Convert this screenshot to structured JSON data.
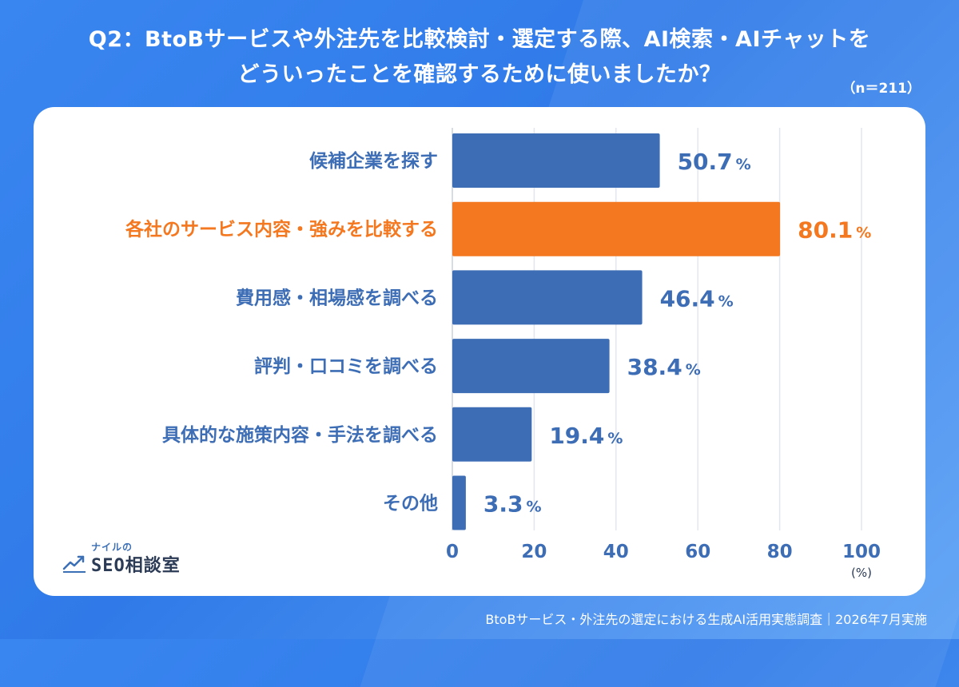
{
  "header": {
    "title_line1": "Q2：BtoBサービスや外注先を比較検討・選定する際、AI検索・AIチャットを",
    "title_line2": "どういったことを確認するために使いましたか？",
    "sample": "（n＝211）"
  },
  "chart_data": {
    "type": "bar",
    "orientation": "horizontal",
    "categories": [
      "候補企業を探す",
      "各社のサービス内容・強みを比較する",
      "費用感・相場感を調べる",
      "評判・口コミを調べる",
      "具体的な施策内容・手法を調べる",
      "その他"
    ],
    "values": [
      50.7,
      80.1,
      46.4,
      38.4,
      19.4,
      3.3
    ],
    "highlight_index": 1,
    "xlim": [
      0,
      100
    ],
    "xticks": [
      0,
      20,
      40,
      60,
      80,
      100
    ],
    "xunit": "(%)",
    "value_suffix": "%",
    "grid": true,
    "colors": {
      "bar": "#3d6db5",
      "highlight": "#f47820",
      "label": "#3d6db5",
      "grid": "#e2e6ee"
    }
  },
  "logo": {
    "small": "ナイルの",
    "main_latin": "SEO",
    "main_jp": "相談室"
  },
  "footer": {
    "source": "BtoBサービス・外注先の選定における生成AI活用実態調査｜2026年7月実施"
  }
}
